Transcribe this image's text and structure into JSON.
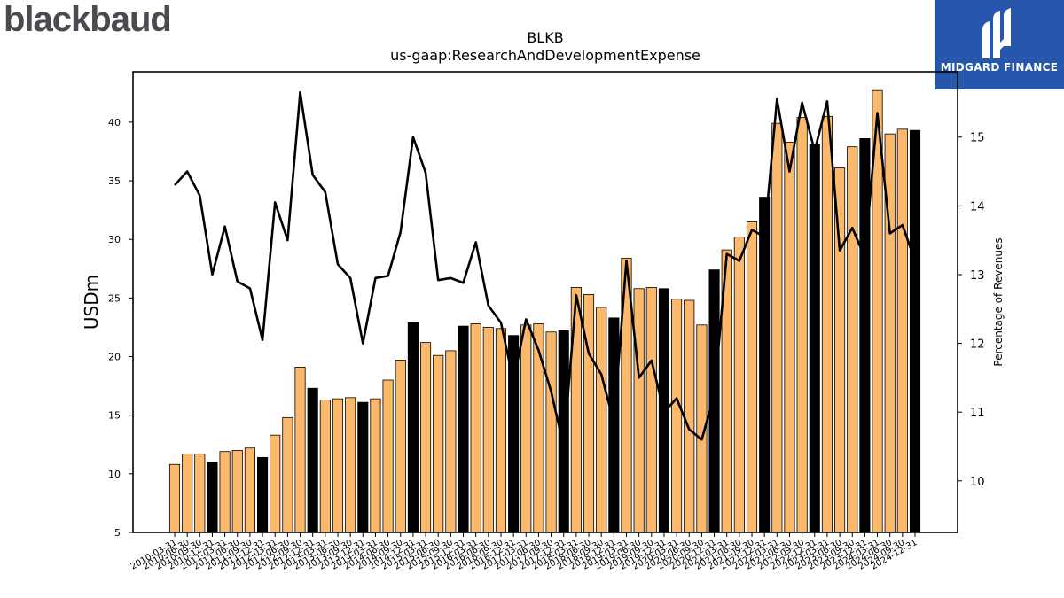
{
  "brand": {
    "name": "blackbaud"
  },
  "badge": {
    "name": "MIDGARD FINANCE",
    "bg": "#2757ad"
  },
  "chart_data": {
    "type": "bar",
    "title": "BLKB",
    "subtitle": "us-gaap:ResearchAndDevelopmentExpense",
    "ylabel": "USDm",
    "y2label": "Percentage of Revenues",
    "ylim": [
      5,
      44.3
    ],
    "y2lim": [
      9.25,
      15.95
    ],
    "yticks": [
      5,
      10,
      15,
      20,
      25,
      30,
      35,
      40
    ],
    "y2ticks": [
      10,
      11,
      12,
      13,
      14,
      15
    ],
    "colors": {
      "quarter": "#fdb96b",
      "annual": "#000000",
      "line": "#000000"
    },
    "categories": [
      "2010-03-31",
      "2010-06-30",
      "2010-09-30",
      "2010-12-31",
      "2011-03-31",
      "2011-06-30",
      "2011-09-30",
      "2011-12-31",
      "2012-03-31",
      "2012-06-30",
      "2012-09-30",
      "2012-12-31",
      "2013-03-31",
      "2013-06-30",
      "2013-09-30",
      "2013-12-31",
      "2014-03-31",
      "2014-06-30",
      "2014-09-30",
      "2014-12-31",
      "2015-03-31",
      "2015-06-30",
      "2015-09-30",
      "2015-12-31",
      "2016-03-31",
      "2016-06-30",
      "2016-09-30",
      "2016-12-31",
      "2017-03-31",
      "2017-06-30",
      "2017-09-30",
      "2017-12-31",
      "2018-03-31",
      "2018-06-30",
      "2018-09-30",
      "2018-12-31",
      "2019-03-31",
      "2019-06-30",
      "2019-09-30",
      "2019-12-31",
      "2020-03-31",
      "2020-06-30",
      "2020-09-30",
      "2020-12-31",
      "2021-03-31",
      "2021-06-30",
      "2021-09-30",
      "2021-12-31",
      "2022-03-31",
      "2022-06-30",
      "2022-09-30",
      "2022-12-31",
      "2023-03-31",
      "2023-06-30",
      "2023-09-30",
      "2023-12-31",
      "2024-03-31",
      "2024-06-30",
      "2024-09-30",
      "2024-12-31"
    ],
    "series": [
      {
        "values": [
          10.8,
          11.7,
          11.7,
          11.0,
          11.9,
          12.0,
          12.2,
          11.4,
          13.3,
          14.8,
          19.1,
          17.3,
          16.3,
          16.4,
          16.5,
          16.1,
          16.4,
          18.0,
          19.7,
          22.9,
          21.2,
          20.1,
          20.5,
          22.6,
          22.8,
          22.5,
          22.4,
          21.8,
          22.7,
          22.8,
          22.1,
          22.2,
          25.9,
          25.3,
          24.2,
          23.3,
          28.4,
          25.8,
          25.9,
          25.8,
          24.9,
          24.8,
          22.7,
          27.4,
          29.1,
          30.2,
          31.5,
          33.6,
          39.9,
          38.3,
          40.4,
          38.1,
          40.5,
          36.1,
          37.9,
          38.6,
          42.7,
          39.0,
          39.4,
          39.3
        ]
      },
      {
        "name": "Percentage of Revenues",
        "values": [
          14.3,
          14.5,
          14.15,
          13.0,
          13.7,
          12.9,
          12.8,
          12.05,
          14.05,
          13.5,
          15.65,
          14.45,
          14.2,
          13.15,
          12.95,
          12.0,
          12.95,
          12.98,
          13.62,
          15.0,
          14.48,
          12.92,
          12.95,
          12.88,
          13.47,
          12.55,
          12.3,
          11.45,
          12.35,
          11.9,
          11.3,
          10.5,
          12.7,
          11.85,
          11.55,
          10.85,
          13.2,
          11.5,
          11.75,
          11.0,
          11.2,
          10.75,
          10.6,
          11.25,
          13.3,
          13.2,
          13.65,
          13.55,
          15.55,
          14.5,
          15.5,
          14.8,
          15.52,
          13.35,
          13.68,
          13.25,
          15.35,
          13.6,
          13.72,
          13.2
        ]
      }
    ],
    "annual_flags": [
      0,
      0,
      0,
      1,
      0,
      0,
      0,
      1,
      0,
      0,
      0,
      1,
      0,
      0,
      0,
      1,
      0,
      0,
      0,
      1,
      0,
      0,
      0,
      1,
      0,
      0,
      0,
      1,
      0,
      0,
      0,
      1,
      0,
      0,
      0,
      1,
      0,
      0,
      0,
      1,
      0,
      0,
      0,
      1,
      0,
      0,
      0,
      1,
      0,
      0,
      0,
      1,
      0,
      0,
      0,
      1,
      0,
      0,
      0,
      1
    ]
  }
}
